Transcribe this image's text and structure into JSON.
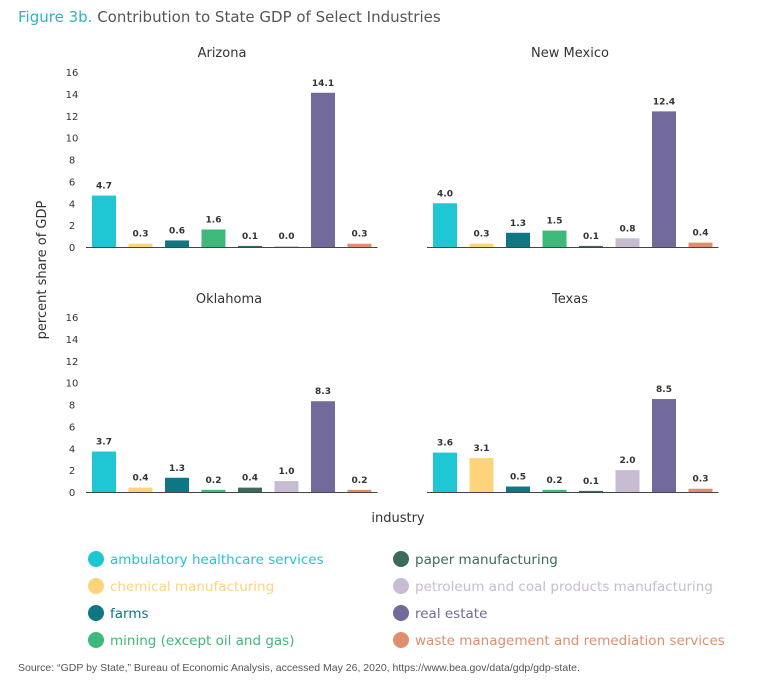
{
  "figure": {
    "label": "Figure 3b.",
    "title": "Contribution to State GDP of Select Industries"
  },
  "source": "Source: “GDP by State,” Bureau of Economic Analysis, accessed May 26, 2020, https://www.bea.gov/data/gdp/gdp-state.",
  "chart_data": {
    "type": "bar",
    "xlabel": "industry",
    "ylabel": "percent share of GDP",
    "ylim": [
      0,
      16
    ],
    "yticks": [
      0,
      2,
      4,
      6,
      8,
      10,
      12,
      14,
      16
    ],
    "grid": false,
    "legend_placement": "bottom",
    "categories": [
      "ambulatory healthcare services",
      "chemical manufacturing",
      "farms",
      "mining (except oil and gas)",
      "paper manufacturing",
      "petroleum and coal products manufacturing",
      "real estate",
      "waste management and remediation services"
    ],
    "colors": [
      "#1fc6d3",
      "#fdd47c",
      "#0f7683",
      "#3db97a",
      "#3f6a57",
      "#c8bcd2",
      "#726a9b",
      "#e08f6c"
    ],
    "panels": [
      {
        "title": "Arizona",
        "labels": [
          "4.7",
          "0.3",
          "0.6",
          "1.6",
          "0.1",
          "0.0",
          "14.1",
          "0.3"
        ],
        "values": [
          4.7,
          0.3,
          0.6,
          1.6,
          0.1,
          0.0,
          14.1,
          0.3
        ]
      },
      {
        "title": "New Mexico",
        "labels": [
          "4.0",
          "0.3",
          "1.3",
          "1.5",
          "0.1",
          "0.8",
          "12.4",
          "0.4"
        ],
        "values": [
          4.0,
          0.3,
          1.3,
          1.5,
          0.1,
          0.8,
          12.4,
          0.4
        ]
      },
      {
        "title": "Oklahoma",
        "labels": [
          "3.7",
          "0.4",
          "1.3",
          "0.2",
          "0.4",
          "1.0",
          "8.3",
          "0.2"
        ],
        "values": [
          3.7,
          0.4,
          1.3,
          0.2,
          0.4,
          1.0,
          8.3,
          0.2
        ]
      },
      {
        "title": "Texas",
        "labels": [
          "3.6",
          "3.1",
          "0.5",
          "0.2",
          "0.1",
          "2.0",
          "8.5",
          "0.3"
        ],
        "values": [
          3.6,
          3.1,
          0.5,
          0.2,
          0.1,
          2.0,
          8.5,
          0.3
        ]
      }
    ]
  }
}
